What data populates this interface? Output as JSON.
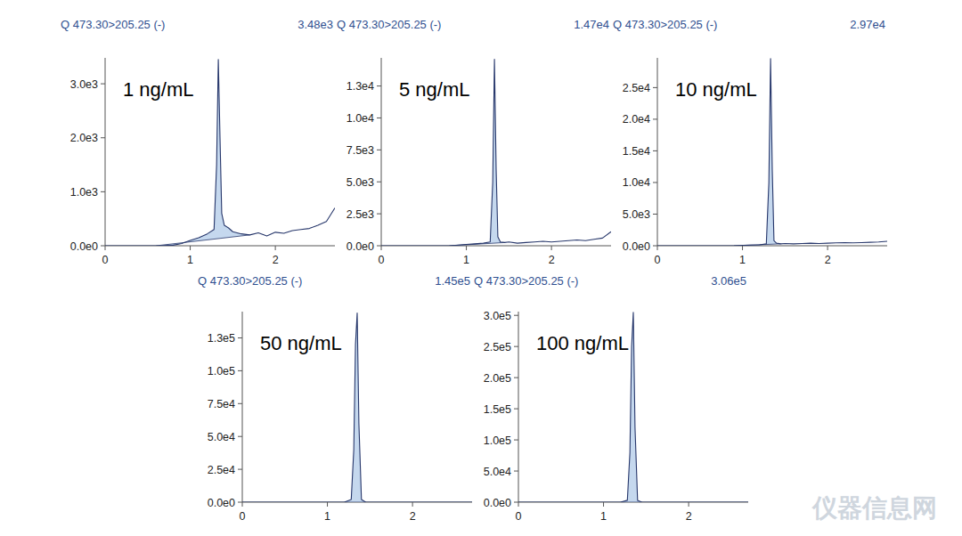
{
  "watermark": "仪器信息网",
  "chart_data": [
    {
      "type": "line",
      "title": "Q 473.30>205.25 (-)",
      "subtitle": "3.48e3",
      "annotations": [
        "1 ng/mL"
      ],
      "color": "#27376b",
      "x": [
        0,
        0.2,
        0.4,
        0.6,
        0.8,
        0.9,
        1.0,
        1.1,
        1.2,
        1.28,
        1.31,
        1.33,
        1.35,
        1.37,
        1.4,
        1.45,
        1.5,
        1.6,
        1.7,
        1.8,
        1.9,
        2.0,
        2.1,
        2.2,
        2.3,
        2.4,
        2.5,
        2.6,
        2.7
      ],
      "values": [
        0,
        0,
        0,
        0,
        10,
        40,
        100,
        150,
        220,
        300,
        1500,
        3450,
        2000,
        600,
        380,
        330,
        260,
        220,
        200,
        240,
        180,
        250,
        230,
        280,
        300,
        320,
        380,
        450,
        700
      ],
      "xlim": [
        0,
        2.7
      ],
      "xticks": [
        0,
        1,
        2
      ],
      "ylim": [
        0,
        3480
      ],
      "yticks": [
        {
          "value": 0,
          "label": "0.0e0"
        },
        {
          "value": 1000,
          "label": "1.0e3"
        },
        {
          "value": 2000,
          "label": "2.0e3"
        },
        {
          "value": 3000,
          "label": "3.0e3"
        }
      ]
    },
    {
      "type": "line",
      "title": "Q 473.30>205.25 (-)",
      "subtitle": "1.47e4",
      "annotations": [
        "5 ng/mL"
      ],
      "color": "#27376b",
      "x": [
        0,
        0.2,
        0.4,
        0.6,
        0.8,
        0.9,
        1.0,
        1.1,
        1.2,
        1.28,
        1.31,
        1.33,
        1.35,
        1.37,
        1.4,
        1.45,
        1.5,
        1.6,
        1.7,
        1.8,
        1.9,
        2.0,
        2.1,
        2.2,
        2.3,
        2.4,
        2.5,
        2.6,
        2.7
      ],
      "values": [
        0,
        0,
        0,
        0,
        0,
        50,
        100,
        150,
        200,
        300,
        5000,
        14600,
        6000,
        700,
        300,
        250,
        300,
        200,
        250,
        300,
        350,
        300,
        350,
        400,
        450,
        400,
        500,
        600,
        1100
      ],
      "xlim": [
        0,
        2.7
      ],
      "xticks": [
        0,
        1,
        2
      ],
      "ylim": [
        0,
        14700
      ],
      "yticks": [
        {
          "value": 0,
          "label": "0.0e0"
        },
        {
          "value": 2500,
          "label": "2.5e3"
        },
        {
          "value": 5000,
          "label": "5.0e3"
        },
        {
          "value": 7500,
          "label": "7.5e3"
        },
        {
          "value": 10000,
          "label": "1.0e4"
        },
        {
          "value": 12500,
          "label": "1.3e4"
        }
      ]
    },
    {
      "type": "line",
      "title": "Q 473.30>205.25 (-)",
      "subtitle": "2.97e4",
      "annotations": [
        "10 ng/mL"
      ],
      "color": "#27376b",
      "x": [
        0,
        0.2,
        0.4,
        0.6,
        0.8,
        0.9,
        1.0,
        1.1,
        1.2,
        1.28,
        1.31,
        1.33,
        1.35,
        1.37,
        1.4,
        1.45,
        1.5,
        1.6,
        1.7,
        1.8,
        1.9,
        2.0,
        2.1,
        2.2,
        2.3,
        2.4,
        2.5,
        2.6,
        2.7
      ],
      "values": [
        0,
        0,
        0,
        0,
        0,
        0,
        50,
        100,
        150,
        300,
        10000,
        29600,
        12000,
        800,
        400,
        300,
        350,
        300,
        350,
        400,
        350,
        400,
        450,
        500,
        450,
        500,
        550,
        600,
        700
      ],
      "xlim": [
        0,
        2.7
      ],
      "xticks": [
        0,
        1,
        2
      ],
      "ylim": [
        0,
        29700
      ],
      "yticks": [
        {
          "value": 0,
          "label": "0.0e0"
        },
        {
          "value": 5000,
          "label": "5.0e3"
        },
        {
          "value": 10000,
          "label": "1.0e4"
        },
        {
          "value": 15000,
          "label": "1.5e4"
        },
        {
          "value": 20000,
          "label": "2.0e4"
        },
        {
          "value": 25000,
          "label": "2.5e4"
        }
      ]
    },
    {
      "type": "line",
      "title": "Q 473.30>205.25 (-)",
      "subtitle": "1.45e5",
      "annotations": [
        "50 ng/mL"
      ],
      "color": "#27376b",
      "x": [
        0,
        0.2,
        0.4,
        0.6,
        0.8,
        0.9,
        1.0,
        1.1,
        1.2,
        1.28,
        1.31,
        1.33,
        1.35,
        1.37,
        1.4,
        1.45,
        1.5,
        1.6,
        1.7,
        1.8,
        1.9,
        2.0,
        2.1,
        2.2,
        2.3,
        2.4,
        2.5,
        2.6,
        2.7
      ],
      "values": [
        0,
        0,
        0,
        0,
        0,
        0,
        0,
        0,
        0,
        2000,
        40000,
        120000,
        144000,
        60000,
        2000,
        0,
        0,
        0,
        0,
        0,
        0,
        0,
        0,
        0,
        0,
        0,
        0,
        0,
        0
      ],
      "xlim": [
        0,
        2.7
      ],
      "xticks": [
        0,
        1,
        2
      ],
      "ylim": [
        0,
        145000
      ],
      "yticks": [
        {
          "value": 0,
          "label": "0.0e0"
        },
        {
          "value": 25000,
          "label": "2.5e4"
        },
        {
          "value": 50000,
          "label": "5.0e4"
        },
        {
          "value": 75000,
          "label": "7.5e4"
        },
        {
          "value": 100000,
          "label": "1.0e5"
        },
        {
          "value": 125000,
          "label": "1.3e5"
        }
      ]
    },
    {
      "type": "line",
      "title": "Q 473.30>205.25 (-)",
      "subtitle": "3.06e5",
      "annotations": [
        "100 ng/mL"
      ],
      "color": "#27376b",
      "x": [
        0,
        0.2,
        0.4,
        0.6,
        0.8,
        0.9,
        1.0,
        1.1,
        1.2,
        1.28,
        1.31,
        1.33,
        1.35,
        1.37,
        1.4,
        1.45,
        1.5,
        1.6,
        1.7,
        1.8,
        1.9,
        2.0,
        2.1,
        2.2,
        2.3,
        2.4,
        2.5,
        2.6,
        2.7
      ],
      "values": [
        0,
        0,
        0,
        0,
        0,
        0,
        0,
        0,
        0,
        3000,
        80000,
        250000,
        305000,
        120000,
        3000,
        0,
        0,
        0,
        0,
        0,
        0,
        0,
        0,
        0,
        0,
        0,
        0,
        0,
        0
      ],
      "xlim": [
        0,
        2.7
      ],
      "xticks": [
        0,
        1,
        2
      ],
      "ylim": [
        0,
        306000
      ],
      "yticks": [
        {
          "value": 0,
          "label": "0.0e0"
        },
        {
          "value": 50000,
          "label": "5.0e4"
        },
        {
          "value": 100000,
          "label": "1.0e5"
        },
        {
          "value": 150000,
          "label": "1.5e5"
        },
        {
          "value": 200000,
          "label": "2.0e5"
        },
        {
          "value": 250000,
          "label": "2.5e5"
        },
        {
          "value": 300000,
          "label": "3.0e5"
        }
      ]
    }
  ]
}
